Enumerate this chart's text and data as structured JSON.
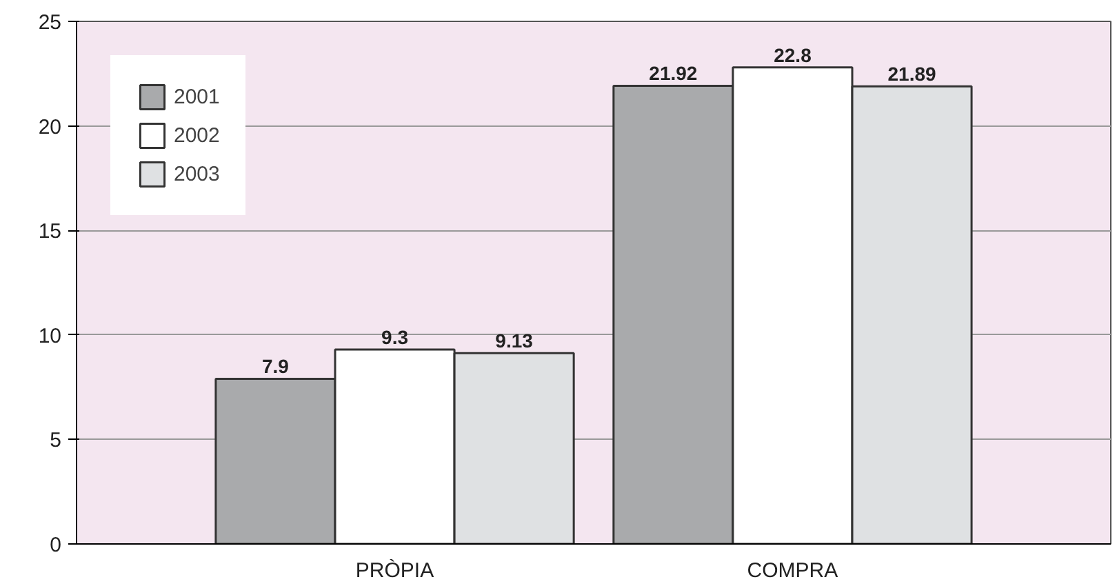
{
  "chart_data": {
    "type": "bar",
    "categories": [
      "PRÒPIA",
      "COMPRA"
    ],
    "series": [
      {
        "name": "2001",
        "color": "#a9aaac",
        "values": [
          7.9,
          21.92
        ]
      },
      {
        "name": "2002",
        "color": "#ffffff",
        "values": [
          9.3,
          22.8
        ]
      },
      {
        "name": "2003",
        "color": "#dfe1e3",
        "values": [
          9.13,
          21.89
        ]
      }
    ],
    "ylim": [
      0,
      25
    ],
    "yticks": [
      0,
      5,
      10,
      15,
      20,
      25
    ],
    "grid": "y",
    "legend": "top left",
    "data_labels": true
  }
}
